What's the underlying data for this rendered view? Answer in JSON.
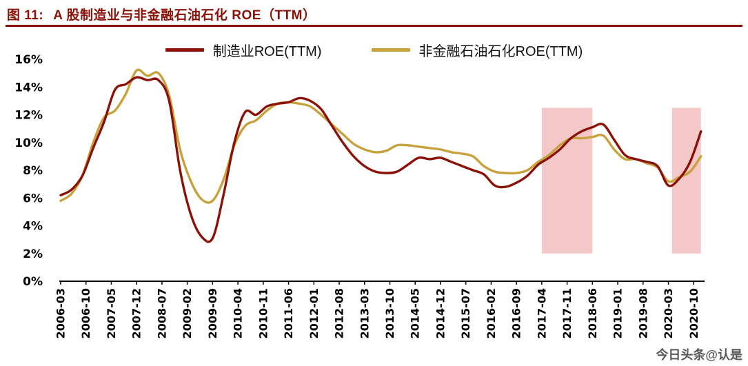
{
  "figure": {
    "title_prefix": "图 11:",
    "title": "A 股制造业与非金融石油石化 ROE（TTM）",
    "accent_color": "#8B1107"
  },
  "watermark": "今日头条@认是",
  "chart_data": {
    "type": "line",
    "title": "A 股制造业与非金融石油石化 ROE（TTM）",
    "xlabel": "",
    "ylabel": "",
    "grid": false,
    "legend_position": "top-center",
    "ylim": [
      0,
      16
    ],
    "xlim": [
      0,
      178
    ],
    "y_ticks": [
      0,
      2,
      4,
      6,
      8,
      10,
      12,
      14,
      16
    ],
    "y_tick_format": "percent",
    "x_unit": "months since 2006-03",
    "x_tick_positions": [
      0,
      7,
      14,
      21,
      28,
      35,
      42,
      49,
      56,
      63,
      70,
      77,
      84,
      91,
      98,
      105,
      112,
      119,
      126,
      133,
      140,
      147,
      154,
      161,
      168,
      175
    ],
    "x_tick_labels": [
      "2006-03",
      "2006-10",
      "2007-05",
      "2007-12",
      "2008-07",
      "2009-02",
      "2009-09",
      "2010-04",
      "2010-11",
      "2011-06",
      "2012-01",
      "2012-08",
      "2013-03",
      "2013-10",
      "2014-05",
      "2014-12",
      "2015-07",
      "2016-02",
      "2016-09",
      "2017-04",
      "2017-11",
      "2018-06",
      "2019-01",
      "2019-08",
      "2020-03",
      "2020-10"
    ],
    "x_months": [
      0,
      3,
      6,
      9,
      12,
      15,
      18,
      21,
      24,
      27,
      30,
      33,
      36,
      39,
      42,
      45,
      48,
      51,
      54,
      57,
      60,
      63,
      66,
      69,
      72,
      75,
      78,
      81,
      84,
      87,
      90,
      93,
      96,
      99,
      102,
      105,
      108,
      111,
      114,
      117,
      120,
      123,
      126,
      129,
      132,
      135,
      138,
      141,
      144,
      147,
      150,
      153,
      156,
      159,
      162,
      165,
      168,
      171,
      174,
      177
    ],
    "series": [
      {
        "name": "制造业ROE(TTM)",
        "color": "#8B1107",
        "values": [
          6.2,
          6.6,
          7.6,
          9.6,
          11.5,
          13.8,
          14.2,
          14.7,
          14.5,
          14.5,
          13.0,
          8.0,
          4.8,
          3.2,
          3.1,
          6.2,
          10.0,
          12.2,
          12.0,
          12.6,
          12.8,
          12.9,
          13.2,
          13.0,
          12.4,
          11.2,
          10.0,
          9.0,
          8.3,
          7.9,
          7.8,
          7.9,
          8.4,
          8.9,
          8.8,
          8.9,
          8.6,
          8.3,
          8.0,
          7.7,
          6.9,
          6.8,
          7.1,
          7.6,
          8.4,
          8.9,
          9.5,
          10.3,
          10.8,
          11.1,
          11.3,
          10.2,
          9.1,
          8.8,
          8.6,
          8.3,
          6.9,
          7.4,
          8.6,
          10.8
        ]
      },
      {
        "name": "非金融石油石化ROE(TTM)",
        "color": "#C7A13B",
        "values": [
          5.8,
          6.3,
          7.6,
          10.0,
          11.8,
          12.3,
          13.5,
          15.2,
          14.8,
          15.0,
          13.4,
          9.5,
          7.2,
          5.9,
          5.8,
          7.3,
          9.8,
          11.2,
          11.6,
          12.3,
          12.8,
          12.9,
          12.8,
          12.6,
          12.0,
          11.3,
          10.6,
          9.9,
          9.5,
          9.3,
          9.4,
          9.8,
          9.8,
          9.7,
          9.6,
          9.5,
          9.3,
          9.2,
          9.0,
          8.3,
          7.9,
          7.8,
          7.8,
          8.0,
          8.6,
          9.1,
          9.8,
          10.3,
          10.3,
          10.4,
          10.5,
          9.5,
          8.8,
          8.8,
          8.5,
          8.2,
          7.2,
          7.5,
          7.9,
          9.0
        ]
      }
    ],
    "highlight_bands": [
      {
        "x_start": 133,
        "x_end": 147,
        "y_start": 2,
        "y_end": 12.5,
        "color": "#F4C8C8",
        "label": "2017-04 至 2018-06"
      },
      {
        "x_start": 169,
        "x_end": 177,
        "y_start": 2,
        "y_end": 12.5,
        "color": "#F4C8C8",
        "label": "2020-04 至 2020-12"
      }
    ]
  }
}
